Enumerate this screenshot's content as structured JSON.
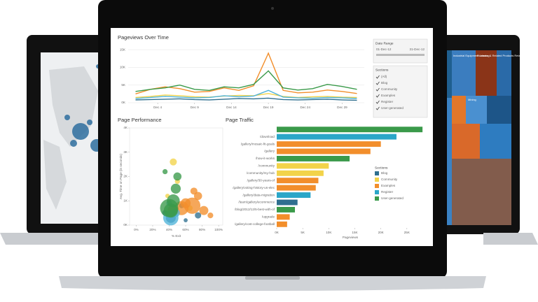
{
  "chart_data": [
    {
      "type": "line",
      "title": "Pageviews Over Time",
      "x": [
        1,
        3,
        5,
        7,
        9,
        11,
        13,
        15,
        17,
        19,
        21,
        23,
        25,
        27,
        29,
        31
      ],
      "xlim": [
        0,
        32
      ],
      "xticks": [
        {
          "value": 4,
          "label": "Dec 4"
        },
        {
          "value": 9,
          "label": "Dec 9"
        },
        {
          "value": 14,
          "label": "Dec 14"
        },
        {
          "value": 19,
          "label": "Dec 19"
        },
        {
          "value": 24,
          "label": "Dec 24"
        },
        {
          "value": 29,
          "label": "Dec 29"
        }
      ],
      "ylim": [
        0,
        16000
      ],
      "yticks": [
        {
          "value": 0,
          "label": "0K"
        },
        {
          "value": 5000,
          "label": "5K"
        },
        {
          "value": 10000,
          "label": "10K"
        },
        {
          "value": 15000,
          "label": "15K"
        }
      ],
      "grid": true,
      "series": [
        {
          "name": "Blog",
          "color": "#2f6f8f",
          "values": [
            800,
            900,
            1000,
            1100,
            900,
            800,
            1000,
            1200,
            1100,
            1300,
            900,
            800,
            900,
            1000,
            800,
            700
          ]
        },
        {
          "name": "Community",
          "color": "#f2d34a",
          "values": [
            1500,
            1800,
            2200,
            2000,
            1700,
            1600,
            1900,
            2100,
            2000,
            2600,
            1800,
            1500,
            1700,
            1800,
            1600,
            1500
          ]
        },
        {
          "name": "Examples",
          "color": "#f28e2b",
          "values": [
            2500,
            3800,
            4500,
            4000,
            3000,
            3200,
            4200,
            3500,
            4800,
            14000,
            3500,
            2800,
            3000,
            3600,
            3200,
            2600
          ]
        },
        {
          "name": "Register",
          "color": "#4fb3d9",
          "values": [
            1200,
            1500,
            1800,
            1600,
            1400,
            1500,
            2000,
            1700,
            1900,
            3500,
            1600,
            1400,
            1300,
            1500,
            1400,
            1200
          ]
        },
        {
          "name": "User-generated",
          "color": "#3a9a4a",
          "values": [
            3200,
            3800,
            4200,
            5000,
            3800,
            3500,
            4500,
            4200,
            5200,
            9000,
            4200,
            3600,
            4000,
            5200,
            4600,
            3800
          ]
        }
      ]
    },
    {
      "type": "scatter",
      "title": "Page Performance",
      "x_label": "% Exit",
      "y_label": "Avg. Time on Page (in seconds)",
      "xlim": [
        -8,
        105
      ],
      "xticks": [
        {
          "value": 0,
          "label": "0%"
        },
        {
          "value": 20,
          "label": "20%"
        },
        {
          "value": 40,
          "label": "40%"
        },
        {
          "value": 60,
          "label": "60%"
        },
        {
          "value": 80,
          "label": "80%"
        },
        {
          "value": 100,
          "label": "100%"
        }
      ],
      "ylim": [
        0,
        4000
      ],
      "yticks": [
        {
          "value": 0,
          "label": "0K"
        },
        {
          "value": 1000,
          "label": "1K"
        },
        {
          "value": 2000,
          "label": "2K"
        },
        {
          "value": 3000,
          "label": "3K"
        },
        {
          "value": 4000,
          "label": "4K"
        }
      ],
      "series": [
        {
          "name": "Blog",
          "color": "#2f6f8f",
          "x": [
            35,
            42,
            55,
            60,
            75
          ],
          "values": [
            500,
            300,
            800,
            200,
            400
          ],
          "sizes": [
            10,
            30,
            8,
            5,
            12
          ]
        },
        {
          "name": "Community",
          "color": "#f2d34a",
          "x": [
            45,
            50,
            65,
            38
          ],
          "values": [
            2600,
            1800,
            700,
            1200
          ],
          "sizes": [
            15,
            8,
            10,
            6
          ]
        },
        {
          "name": "Examples",
          "color": "#f28e2b",
          "x": [
            45,
            55,
            60,
            68,
            75,
            82,
            90,
            70
          ],
          "values": [
            600,
            700,
            900,
            800,
            1200,
            600,
            400,
            1400
          ],
          "sizes": [
            40,
            60,
            30,
            80,
            20,
            25,
            10,
            15
          ]
        },
        {
          "name": "Register",
          "color": "#4fb3d9",
          "x": [
            42,
            48,
            40
          ],
          "values": [
            300,
            500,
            900
          ],
          "sizes": [
            70,
            20,
            10
          ]
        },
        {
          "name": "User-generated",
          "color": "#3a9a4a",
          "x": [
            40,
            45,
            48,
            35,
            50,
            42
          ],
          "values": [
            700,
            1000,
            1500,
            2200,
            2000,
            600
          ],
          "sizes": [
            100,
            50,
            30,
            8,
            20,
            60
          ]
        }
      ]
    },
    {
      "type": "hbar",
      "title": "Page Traffic",
      "x_label": "Pageviews",
      "categories": [
        null,
        "/download",
        "/gallery/mosaic-fit-goals",
        "/gallery",
        "/how-it-works",
        "/community",
        "/community/my-hub",
        "/gallery/30-years-of",
        "/gallery/voting-history-us-elec",
        "/gallery/data-migration",
        "/learn/gallery/ecommerce",
        "/blog/2012/12/5-best-with-of",
        "/upgrade",
        "/gallery/cost-college-football"
      ],
      "values": [
        28000,
        23000,
        20000,
        18000,
        14000,
        10000,
        9000,
        8000,
        7500,
        6500,
        4000,
        3500,
        2500,
        2000
      ],
      "colors": [
        "#3a9a4a",
        "#2aa6c8",
        "#f28e2b",
        "#f28e2b",
        "#3a9a4a",
        "#f2d34a",
        "#f2d34a",
        "#f28e2b",
        "#f28e2b",
        "#2aa6c8",
        "#2f6f8f",
        "#3a9a4a",
        "#f28e2b",
        "#f28e2b"
      ],
      "xlim": [
        0,
        30000
      ],
      "xticks": [
        {
          "value": 0,
          "label": "0K"
        },
        {
          "value": 5000,
          "label": "5K"
        },
        {
          "value": 10000,
          "label": "10K"
        },
        {
          "value": 15000,
          "label": "15K"
        },
        {
          "value": 20000,
          "label": "20K"
        },
        {
          "value": 25000,
          "label": "25K"
        }
      ],
      "legend": {
        "title": "Sections",
        "items": [
          {
            "name": "Blog",
            "color": "#2f6f8f"
          },
          {
            "name": "Community",
            "color": "#f2d34a"
          },
          {
            "name": "Examples",
            "color": "#f28e2b"
          },
          {
            "name": "Register",
            "color": "#2aa6c8"
          },
          {
            "name": "User-generated",
            "color": "#3a9a4a"
          }
        ]
      }
    }
  ],
  "filters": {
    "date_range": {
      "title": "Date Range",
      "start": "01-Dec-12",
      "end": "31-Dec-12"
    },
    "sections": {
      "title": "Sections",
      "options": [
        "(All)",
        "Blog",
        "Community",
        "Examples",
        "Register",
        "User-generated"
      ]
    }
  },
  "treemap_labels": [
    "Industrial Equipment Leasing",
    "Footwear & Related Products Retail",
    "Mining"
  ]
}
